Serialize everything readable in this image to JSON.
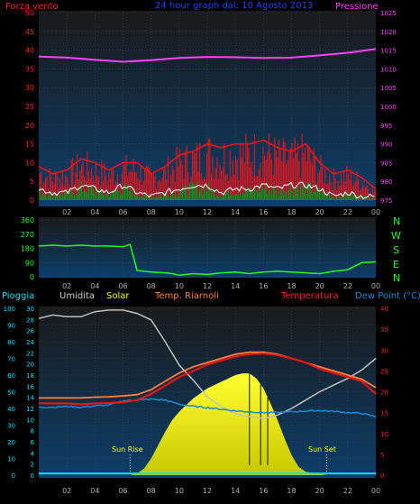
{
  "colors": {
    "wind_label": "#ff2020",
    "title": "#2040ff",
    "pressure": "#ff40ff",
    "wind_gust": "#ff1010",
    "wind_avg": "#ffffff",
    "wind_fill": "#10a010",
    "direction": "#20ff20",
    "rain": "#00e0ff",
    "humidity": "#c0c0c0",
    "solar": "#ffff00",
    "riarnoli": "#ff8040",
    "temperature": "#ff1010",
    "dewpoint": "#1a8ad4",
    "temp_axis": "#ff2020"
  },
  "header": {
    "wind_label": "Forza vento",
    "title": "24 hour graph dal: 10 Agosto 2013",
    "pressure_label": "Pressione"
  },
  "direction_panel": {
    "compass": [
      "N",
      "W",
      "S",
      "E",
      "N"
    ]
  },
  "bottom_header": {
    "rain": "Pioggia",
    "humidity": "Umidita",
    "solar": "Solar",
    "riarnoli": "Temp. Riarnoli",
    "temperature": "Temperatura",
    "dewpoint": "Dew Point (°C)"
  },
  "annotations": {
    "sunrise": "Sun Rise",
    "sunset": "Sun Set"
  },
  "chart_data": [
    {
      "type": "line",
      "title": "24 hour graph dal: 10 Agosto 2013",
      "x_tick_labels": [
        "02",
        "04",
        "06",
        "08",
        "10",
        "12",
        "14",
        "16",
        "18",
        "20",
        "22",
        "00"
      ],
      "xlim": [
        0,
        24
      ],
      "ylim_left": [
        0,
        50
      ],
      "y_ticks_left": [
        0,
        5,
        10,
        15,
        20,
        25,
        30,
        35,
        40,
        45,
        50
      ],
      "ylim_right": [
        975,
        1025
      ],
      "y_ticks_right": [
        975,
        980,
        985,
        990,
        995,
        1000,
        1005,
        1010,
        1015,
        1020,
        1025
      ],
      "series": [
        {
          "name": "Pressione",
          "axis": "right",
          "x": [
            0,
            2,
            4,
            6,
            8,
            10,
            12,
            14,
            16,
            18,
            20,
            22,
            24
          ],
          "values": [
            1013.3,
            1013.0,
            1012.4,
            1011.9,
            1012.3,
            1012.9,
            1013.2,
            1013.1,
            1012.9,
            1013.0,
            1013.6,
            1014.3,
            1015.3
          ]
        },
        {
          "name": "Forza vento",
          "kind": "gust",
          "axis": "left",
          "x": [
            0,
            1,
            2,
            3,
            4,
            5,
            6,
            7,
            8,
            9,
            10,
            11,
            12,
            13,
            14,
            15,
            16,
            17,
            18,
            19,
            20,
            21,
            22,
            23,
            24
          ],
          "values": [
            9,
            7,
            8,
            11,
            10,
            8,
            10,
            10,
            7,
            9,
            12,
            13,
            15,
            14,
            15,
            15,
            16,
            14,
            13,
            15,
            10,
            7,
            8,
            6,
            3
          ]
        },
        {
          "name": "Forza vento",
          "kind": "average",
          "axis": "left",
          "x": [
            0,
            1,
            2,
            3,
            4,
            5,
            6,
            7,
            8,
            9,
            10,
            11,
            12,
            13,
            14,
            15,
            16,
            17,
            18,
            19,
            20,
            21,
            22,
            23,
            24
          ],
          "values": [
            3,
            2,
            2,
            4,
            3,
            2,
            4,
            2,
            1,
            2,
            3,
            4,
            4,
            2,
            3,
            3,
            4,
            3,
            4,
            4,
            3,
            1,
            2,
            1,
            1
          ]
        }
      ]
    },
    {
      "type": "line",
      "x_tick_labels": [
        "02",
        "04",
        "06",
        "08",
        "10",
        "12",
        "14",
        "16",
        "18",
        "20",
        "22",
        "00"
      ],
      "xlim": [
        0,
        24
      ],
      "ylim": [
        0,
        360
      ],
      "y_ticks": [
        0,
        90,
        180,
        270,
        360
      ],
      "series": [
        {
          "name": "direction",
          "x": [
            0,
            1,
            2,
            3,
            4,
            5,
            6,
            6.5,
            7,
            8,
            9,
            9.5,
            10,
            11,
            12,
            13,
            14,
            15,
            16,
            17,
            18,
            19,
            20,
            21,
            22,
            23,
            24
          ],
          "values": [
            195,
            200,
            195,
            200,
            195,
            195,
            190,
            205,
            40,
            30,
            25,
            20,
            10,
            20,
            15,
            25,
            30,
            20,
            30,
            35,
            30,
            25,
            20,
            35,
            45,
            90,
            95
          ]
        }
      ]
    },
    {
      "type": "line",
      "x_tick_labels": [
        "02",
        "04",
        "06",
        "08",
        "10",
        "12",
        "14",
        "16",
        "18",
        "20",
        "22",
        "00"
      ],
      "xlim": [
        0,
        24
      ],
      "ylim_rain": [
        0,
        100
      ],
      "y_ticks_rain": [
        0,
        10,
        20,
        30,
        40,
        50,
        60,
        70,
        80,
        90,
        100
      ],
      "ylim_humidity": [
        0,
        30
      ],
      "y_ticks_humidity": [
        0,
        2,
        4,
        6,
        8,
        10,
        12,
        14,
        16,
        18,
        20,
        22,
        24,
        26,
        28,
        30
      ],
      "ylim_temp": [
        0,
        40
      ],
      "y_ticks_temp": [
        0,
        5,
        10,
        15,
        20,
        25,
        30,
        35,
        40
      ],
      "series": [
        {
          "name": "Umidita",
          "x": [
            0,
            1,
            2,
            3,
            4,
            5,
            6,
            7,
            8,
            9,
            10,
            11,
            12,
            13,
            14,
            15,
            16,
            17,
            18,
            19,
            20,
            21,
            22,
            23,
            24
          ],
          "values": [
            94,
            96,
            95,
            95,
            98,
            99,
            99,
            97,
            93,
            80,
            66,
            57,
            47,
            41,
            37,
            35,
            34,
            36,
            40,
            45,
            50,
            54,
            58,
            63,
            70
          ]
        },
        {
          "name": "Temp. Riarnoli",
          "x": [
            0,
            1,
            2,
            3,
            4,
            5,
            6,
            7,
            8,
            9,
            10,
            11,
            12,
            13,
            14,
            15,
            16,
            17,
            18,
            19,
            20,
            21,
            22,
            23,
            24
          ],
          "values": [
            18.5,
            18.5,
            18.5,
            18.5,
            18.7,
            18.8,
            19,
            19.3,
            20.5,
            22.5,
            24.5,
            26,
            27,
            28,
            29,
            29.5,
            29.5,
            29,
            28,
            27,
            26,
            25,
            24,
            23,
            21
          ]
        },
        {
          "name": "Temperatura",
          "x": [
            0,
            1,
            2,
            3,
            4,
            5,
            6,
            7,
            8,
            9,
            10,
            11,
            12,
            13,
            14,
            15,
            16,
            17,
            18,
            19,
            20,
            21,
            22,
            23,
            24
          ],
          "values": [
            17.2,
            17.2,
            17.2,
            17,
            17.2,
            17.3,
            17.5,
            18,
            19.5,
            21.5,
            23.5,
            25,
            26.5,
            27.5,
            28.5,
            29,
            29.2,
            28.8,
            28,
            27,
            25.5,
            24.5,
            23.5,
            22.5,
            19.5
          ]
        },
        {
          "name": "Dew Point (°C)",
          "x": [
            0,
            1,
            2,
            3,
            4,
            5,
            6,
            7,
            8,
            9,
            10,
            11,
            12,
            13,
            14,
            15,
            16,
            17,
            18,
            19,
            20,
            21,
            22,
            23,
            24
          ],
          "values": [
            16.3,
            16.3,
            16.5,
            16.3,
            16.6,
            16.8,
            17.8,
            18,
            18.2,
            18,
            17,
            16.5,
            16.2,
            15.8,
            15.4,
            15.2,
            15,
            15,
            15.2,
            15.4,
            15.5,
            15.3,
            15,
            14.8,
            14
          ]
        },
        {
          "name": "Solar",
          "x": [
            0,
            6.5,
            7,
            7.5,
            8,
            8.5,
            9,
            9.5,
            10,
            10.5,
            11,
            11.5,
            12,
            12.5,
            13,
            13.5,
            14,
            14.5,
            15,
            15.5,
            16,
            16.5,
            17,
            17.5,
            18,
            18.5,
            19,
            20.5,
            24
          ],
          "values": [
            0,
            0,
            1,
            4,
            10,
            18,
            26,
            33,
            38,
            42,
            46,
            49,
            52,
            54,
            56,
            58,
            60,
            61,
            61,
            58,
            52,
            43,
            33,
            22,
            12,
            5,
            2,
            0,
            0
          ]
        },
        {
          "name": "Pioggia",
          "x": [
            0,
            24
          ],
          "values": [
            1,
            1
          ]
        }
      ],
      "annotations": [
        {
          "text": "Sun Rise",
          "x": 6.5
        },
        {
          "text": "Sun Set",
          "x": 20.5
        }
      ]
    }
  ]
}
